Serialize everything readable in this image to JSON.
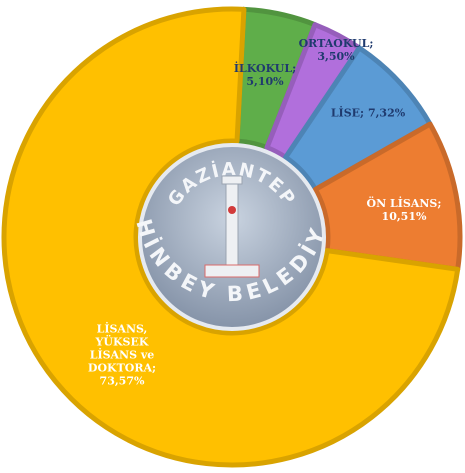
{
  "chart_data": {
    "type": "donut",
    "categories": [
      "İLKOKUL;",
      "ORTAOKUL;",
      "LİSE;",
      "ÖN LİSANS;",
      "LİSANS, YÜKSEK LİSANS ve DOKTORA;"
    ],
    "values": [
      5.1,
      3.5,
      7.32,
      10.51,
      73.57
    ],
    "value_labels": [
      "5,10%",
      "3,50%",
      "7,32%",
      "10,51%",
      "73,57%"
    ],
    "colors": [
      "#5fae4a",
      "#b16fdc",
      "#5b9bd5",
      "#ed7d31",
      "#ffc000"
    ]
  },
  "logo": {
    "top": "GAZİANTEP",
    "bottom": "ŞAHİNBEY BELEDİYESİ"
  }
}
